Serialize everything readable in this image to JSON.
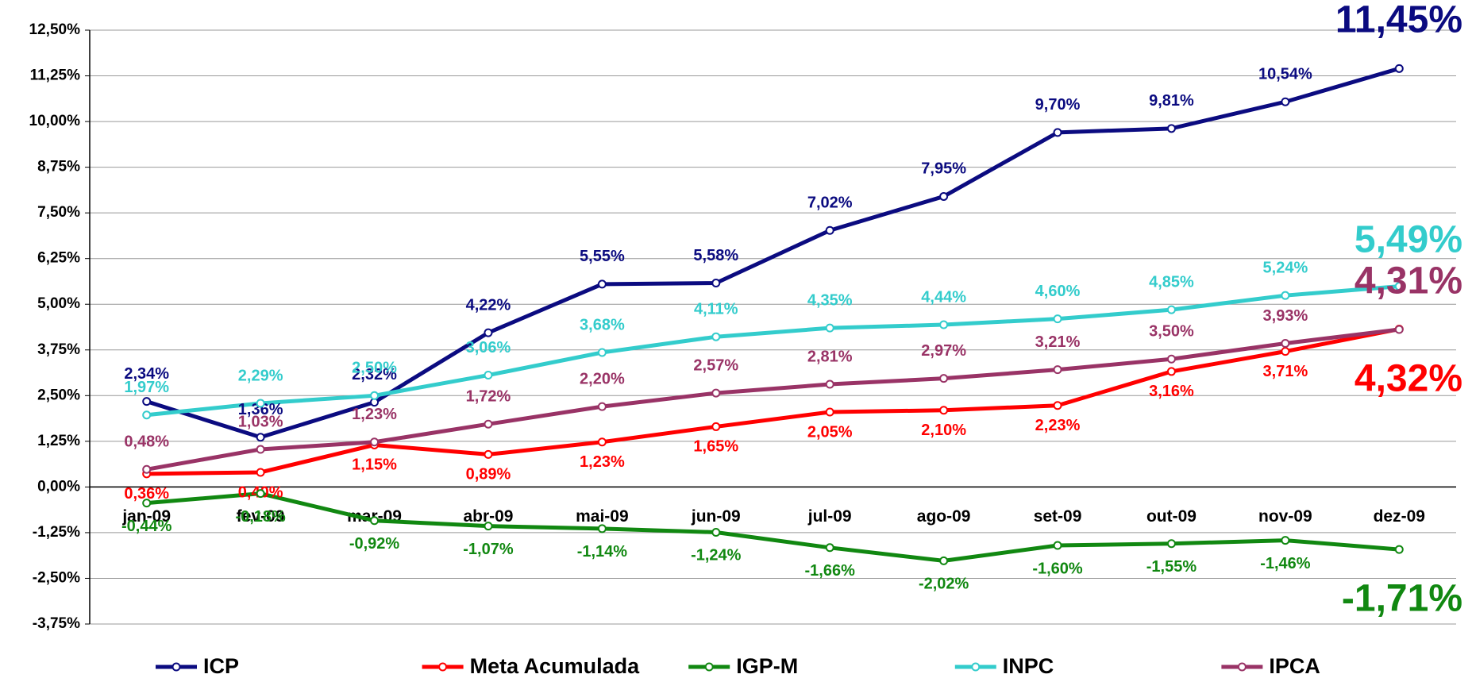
{
  "chart_data": {
    "type": "line",
    "categories": [
      "jan-09",
      "fev-09",
      "mar-09",
      "abr-09",
      "mai-09",
      "jun-09",
      "jul-09",
      "ago-09",
      "set-09",
      "out-09",
      "nov-09",
      "dez-09"
    ],
    "ylim": [
      -3.75,
      12.5
    ],
    "yticks": [
      {
        "value": -3.75,
        "label": "-3,75%"
      },
      {
        "value": -2.5,
        "label": "-2,50%"
      },
      {
        "value": -1.25,
        "label": "-1,25%"
      },
      {
        "value": 0,
        "label": "0,00%"
      },
      {
        "value": 1.25,
        "label": "1,25%"
      },
      {
        "value": 2.5,
        "label": "2,50%"
      },
      {
        "value": 3.75,
        "label": "3,75%"
      },
      {
        "value": 5,
        "label": "5,00%"
      },
      {
        "value": 6.25,
        "label": "6,25%"
      },
      {
        "value": 7.5,
        "label": "7,50%"
      },
      {
        "value": 8.75,
        "label": "8,75%"
      },
      {
        "value": 10,
        "label": "10,00%"
      },
      {
        "value": 11.25,
        "label": "11,25%"
      },
      {
        "value": 12.5,
        "label": "12,50%"
      }
    ],
    "grid": true,
    "legend": "bottom",
    "series": [
      {
        "name": "ICP",
        "color": "#0b0b80",
        "values": [
          2.34,
          1.36,
          2.32,
          4.22,
          5.55,
          5.58,
          7.02,
          7.95,
          9.7,
          9.81,
          10.54,
          11.45
        ],
        "value_labels": [
          "2,34%",
          "1,36%",
          "2,32%",
          "4,22%",
          "5,55%",
          "5,58%",
          "7,02%",
          "7,95%",
          "9,70%",
          "9,81%",
          "10,54%",
          "11,45%"
        ]
      },
      {
        "name": "Meta Acumulada",
        "color": "#ff0000",
        "values": [
          0.36,
          0.4,
          1.15,
          0.89,
          1.23,
          1.65,
          2.05,
          2.1,
          2.23,
          3.16,
          3.71,
          4.32
        ],
        "value_labels": [
          "0,36%",
          "0,40%",
          "1,15%",
          "0,89%",
          "1,23%",
          "1,65%",
          "2,05%",
          "2,10%",
          "2,23%",
          "3,16%",
          "3,71%",
          "4,32%"
        ]
      },
      {
        "name": "IGP-M",
        "color": "#118811",
        "values": [
          -0.44,
          -0.18,
          -0.92,
          -1.07,
          -1.14,
          -1.24,
          -1.66,
          -2.02,
          -1.6,
          -1.55,
          -1.46,
          -1.71
        ],
        "value_labels": [
          "-0,44%",
          "-0,18%",
          "-0,92%",
          "-1,07%",
          "-1,14%",
          "-1,24%",
          "-1,66%",
          "-2,02%",
          "-1,60%",
          "-1,55%",
          "-1,46%",
          "-1,71%"
        ]
      },
      {
        "name": "INPC",
        "color": "#33cccc",
        "values": [
          1.97,
          2.29,
          2.5,
          3.06,
          3.68,
          4.11,
          4.35,
          4.44,
          4.6,
          4.85,
          5.24,
          5.49
        ],
        "value_labels": [
          "1,97%",
          "2,29%",
          "2,50%",
          "3,06%",
          "3,68%",
          "4,11%",
          "4,35%",
          "4,44%",
          "4,60%",
          "4,85%",
          "5,24%",
          "5,49%"
        ]
      },
      {
        "name": "IPCA",
        "color": "#993366",
        "values": [
          0.48,
          1.03,
          1.23,
          1.72,
          2.2,
          2.57,
          2.81,
          2.97,
          3.21,
          3.5,
          3.93,
          4.31
        ],
        "value_labels": [
          "0,48%",
          "1,03%",
          "1,23%",
          "1,72%",
          "2,20%",
          "2,57%",
          "2,81%",
          "2,97%",
          "3,21%",
          "3,50%",
          "3,93%",
          "4,31%"
        ]
      }
    ]
  }
}
